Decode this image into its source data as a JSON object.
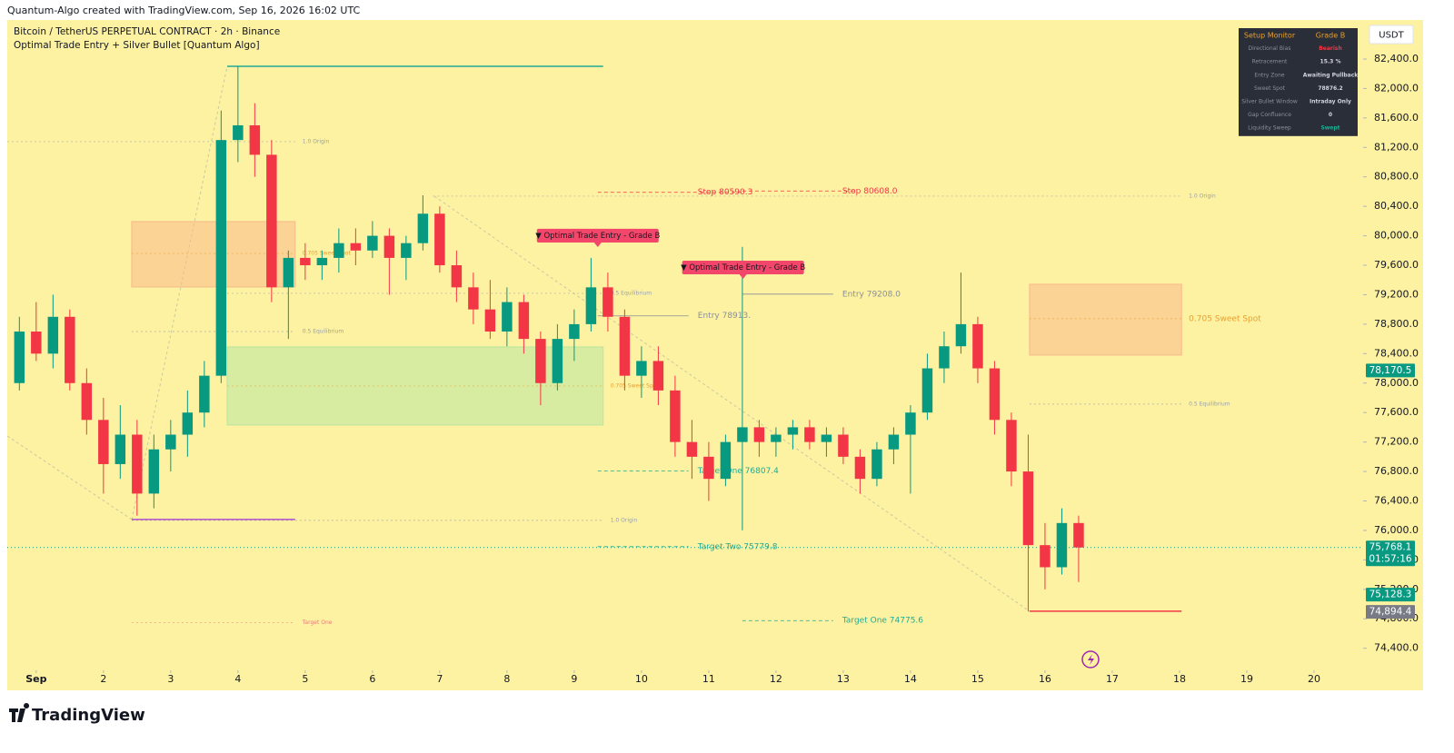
{
  "header": "Quantum-Algo created with TradingView.com, Sep 16, 2026 16:02 UTC",
  "brand": "TradingView",
  "chart_data": {
    "type": "candlestick",
    "title": "Bitcoin / TetherUS PERPETUAL CONTRACT · 2h · Binance",
    "subtitle": "Optimal Trade Entry + Silver Bullet [Quantum Algo]",
    "currency": "USDT",
    "up_color": "#089981",
    "down_color": "#f23645",
    "x": [
      0.75,
      1,
      1.25,
      1.5,
      1.75,
      2,
      2.25,
      2.5,
      2.75,
      3,
      3.25,
      3.5,
      3.75,
      4,
      4.25,
      4.5,
      4.75,
      5,
      5.25,
      5.5,
      5.75,
      6,
      6.25,
      6.5,
      6.75,
      7,
      7.25,
      7.5,
      7.75,
      8,
      8.25,
      8.5,
      8.75,
      9,
      9.25,
      9.5,
      9.75,
      10,
      10.25,
      10.5,
      10.75,
      11,
      11.25,
      11.5,
      11.75,
      12,
      12.25,
      12.5,
      12.75,
      13,
      13.25,
      13.5,
      13.75,
      14,
      14.25,
      14.5,
      14.75,
      15,
      15.25,
      15.5,
      15.75,
      16,
      16.25,
      16.5
    ],
    "open": [
      78000,
      78700,
      78400,
      78900,
      78000,
      77500,
      76900,
      77300,
      76500,
      77100,
      77300,
      77600,
      78100,
      81300,
      81500,
      81100,
      79300,
      79700,
      79600,
      79700,
      79900,
      79800,
      80000,
      79700,
      79900,
      80300,
      79600,
      79300,
      79000,
      78700,
      79100,
      78600,
      78000,
      78600,
      78800,
      79300,
      78900,
      78100,
      78300,
      77900,
      77200,
      77000,
      76700,
      77200,
      77400,
      77200,
      77300,
      77400,
      77200,
      77300,
      77000,
      76700,
      77100,
      77300,
      77600,
      78200,
      78500,
      78800,
      78200,
      77500,
      76800,
      75800,
      75500,
      76100
    ],
    "high": [
      78900,
      79100,
      79200,
      79000,
      78200,
      77800,
      77700,
      77500,
      77300,
      77500,
      77900,
      78300,
      81700,
      82300,
      81800,
      81300,
      79800,
      79900,
      79800,
      80100,
      80100,
      80200,
      80100,
      80000,
      80550,
      80400,
      79800,
      79500,
      79400,
      79300,
      79200,
      78700,
      78800,
      79000,
      79700,
      79500,
      79000,
      78500,
      78500,
      78100,
      77500,
      77200,
      77300,
      79850,
      77500,
      77400,
      77500,
      77500,
      77400,
      77400,
      77100,
      77200,
      77400,
      77700,
      78400,
      78700,
      79500,
      78900,
      78300,
      77600,
      77300,
      76100,
      76300,
      76200
    ],
    "low": [
      77900,
      78300,
      78200,
      77900,
      77300,
      76500,
      76700,
      76200,
      76300,
      76800,
      77000,
      77400,
      78000,
      81000,
      80800,
      79100,
      78600,
      79400,
      79400,
      79500,
      79600,
      79700,
      79200,
      79400,
      79800,
      79500,
      79100,
      78800,
      78600,
      78500,
      78400,
      77700,
      77900,
      78300,
      78700,
      78700,
      77900,
      77800,
      77700,
      77000,
      76700,
      76400,
      76600,
      76000,
      77000,
      77000,
      77100,
      77100,
      77000,
      76900,
      76500,
      76600,
      76900,
      76500,
      77500,
      78000,
      78400,
      78000,
      77300,
      76600,
      74900,
      75200,
      75400,
      75300
    ],
    "close": [
      78700,
      78400,
      78900,
      78000,
      77500,
      76900,
      77300,
      76500,
      77100,
      77300,
      77600,
      78100,
      81300,
      81500,
      81100,
      79300,
      79700,
      79600,
      79700,
      79900,
      79800,
      80000,
      79700,
      79900,
      80300,
      79600,
      79300,
      79000,
      78700,
      79100,
      78600,
      78000,
      78600,
      78800,
      79300,
      78900,
      78100,
      78300,
      77900,
      77200,
      77000,
      76700,
      77200,
      77400,
      77200,
      77300,
      77400,
      77200,
      77300,
      77000,
      76700,
      77100,
      77300,
      77600,
      78200,
      78500,
      78800,
      78200,
      77500,
      76800,
      75800,
      75500,
      76100,
      75768.1
    ],
    "xlim": [
      0.57,
      20.73
    ],
    "xticks": [
      {
        "value": 1,
        "label": "Sep"
      },
      2,
      3,
      4,
      5,
      6,
      7,
      8,
      9,
      10,
      11,
      12,
      13,
      14,
      15,
      16,
      17,
      18,
      19,
      20
    ],
    "ylim": [
      74100,
      82930
    ],
    "yticks": [
      {
        "value": 74400,
        "label": "74,400.0"
      },
      {
        "value": 74800,
        "label": "74,800.0"
      },
      {
        "value": 75200,
        "label": "75,200.0"
      },
      {
        "value": 75600,
        "label": "75,600.0"
      },
      {
        "value": 76000,
        "label": "76,000.0"
      },
      {
        "value": 76400,
        "label": "76,400.0"
      },
      {
        "value": 76800,
        "label": "76,800.0"
      },
      {
        "value": 77200,
        "label": "77,200.0"
      },
      {
        "value": 77600,
        "label": "77,600.0"
      },
      {
        "value": 78000,
        "label": "78,000.0"
      },
      {
        "value": 78400,
        "label": "78,400.0"
      },
      {
        "value": 78800,
        "label": "78,800.0"
      },
      {
        "value": 79200,
        "label": "79,200.0"
      },
      {
        "value": 79600,
        "label": "79,600.0"
      },
      {
        "value": 80000,
        "label": "80,000.0"
      },
      {
        "value": 80400,
        "label": "80,400.0"
      },
      {
        "value": 80800,
        "label": "80,800.0"
      },
      {
        "value": 81200,
        "label": "81,200.0"
      },
      {
        "value": 81600,
        "label": "81,600.0"
      },
      {
        "value": 82000,
        "label": "82,000.0"
      },
      {
        "value": 82400,
        "label": "82,400.0"
      }
    ],
    "zones": [
      {
        "x0": 2.42,
        "x1": 4.85,
        "top": 80193,
        "bottom": 79305,
        "color": "#f7b98a"
      },
      {
        "x0": 3.84,
        "x1": 9.43,
        "top": 78491,
        "bottom": 77431,
        "color": "#b8e6a0"
      },
      {
        "x0": 15.77,
        "x1": 18.03,
        "top": 79342,
        "bottom": 78380,
        "color": "#f7b98a"
      }
    ],
    "lines": [
      {
        "x0": 3.84,
        "x1": 9.43,
        "price": 82301,
        "color": "#22ab94"
      },
      {
        "x0": 2.42,
        "x1": 4.85,
        "price": 76149,
        "color": "#b04fd0"
      },
      {
        "x0": 15.77,
        "x1": 18.03,
        "price": 74903,
        "color": "#f23645"
      }
    ],
    "fib_levels": [
      {
        "text": "1.0 Origin",
        "price": 81278,
        "x0": 0.57,
        "x1": 4.85,
        "color": "#9aa0a8"
      },
      {
        "text": "0.705 Sweet Spot",
        "price": 79760,
        "x0": 2.42,
        "x1": 4.85,
        "color": "#e8a030"
      },
      {
        "text": "0.5 Equilibrium",
        "price": 78700,
        "x0": 2.42,
        "x1": 4.85,
        "color": "#9aa0a8"
      },
      {
        "text": "Target One",
        "price": 74750,
        "x0": 2.42,
        "x1": 4.85,
        "color": "#e87a7a"
      },
      {
        "text": "0.5 Equilibrium",
        "price": 79219,
        "x0": 3.84,
        "x1": 9.43,
        "color": "#9aa0a8"
      },
      {
        "text": "0.705 Sweet Spot",
        "price": 77961,
        "x0": 3.84,
        "x1": 9.43,
        "color": "#e8a030"
      },
      {
        "text": "1.0 Origin",
        "price": 76136,
        "x0": 2.42,
        "x1": 9.43,
        "color": "#9aa0a8"
      },
      {
        "text": "1.0 Origin",
        "price": 80538,
        "x0": 6.9,
        "x1": 18.03,
        "color": "#9aa0a8"
      },
      {
        "text": "0.705 Sweet Spot",
        "price": 78874,
        "x0": 15.77,
        "x1": 18.03,
        "color": "#e8a030"
      },
      {
        "text": "0.5 Equilibrium",
        "price": 77715,
        "x0": 15.77,
        "x1": 18.03,
        "color": "#9aa0a8"
      }
    ],
    "levels": [
      {
        "text": "Stop  80590.3",
        "price": 80590.3,
        "x0": 9.35,
        "x1": 11.5,
        "color": "#f23645"
      },
      {
        "text": "Stop  80608.0",
        "price": 80608,
        "x0": 11.5,
        "x1": 13.2,
        "color": "#f23645"
      },
      {
        "text": "Entry  78913.",
        "price": 78913,
        "x0": 9.35,
        "x1": 10.7,
        "color": "#8a8f99"
      },
      {
        "text": "Entry  79208.0",
        "price": 79208,
        "x0": 11.5,
        "x1": 12.85,
        "color": "#8a8f99"
      },
      {
        "text": "Target One  76807.4",
        "price": 76807.4,
        "x0": 9.35,
        "x1": 10.7,
        "color": "#22ab94"
      },
      {
        "text": "Target Two  75779.8",
        "price": 75779.8,
        "x0": 9.35,
        "x1": 10.7,
        "color": "#22ab94"
      },
      {
        "text": "Target One  74775.6",
        "price": 74775.6,
        "x0": 11.5,
        "x1": 12.85,
        "color": "#22ab94"
      }
    ],
    "signals": [
      {
        "text": "▼ Optimal Trade Entry - Grade B",
        "x": 9.35,
        "price": 79897
      },
      {
        "text": "▼ Optimal Trade Entry - Grade B",
        "x": 11.51,
        "price": 79465
      }
    ],
    "price_labels": [
      {
        "value": 78170.5,
        "label": "78,170.5",
        "color": "#089981"
      },
      {
        "value": 75768.1,
        "label": "75,768.1",
        "sublabel": "01:57:16",
        "color": "#089981"
      },
      {
        "value": 75128.3,
        "label": "75,128.3",
        "color": "#089981"
      },
      {
        "value": 74894.4,
        "label": "74,894.4",
        "color": "#787b86"
      }
    ]
  },
  "setup_monitor": {
    "header": [
      "Setup Monitor",
      "Grade B"
    ],
    "rows": [
      [
        "Directional Bias",
        "Bearish"
      ],
      [
        "Retracement",
        "15.3 %"
      ],
      [
        "Entry Zone",
        "Awaiting Pullback"
      ],
      [
        "Sweet Spot",
        "78876.2"
      ],
      [
        "Silver Bullet Window",
        "Intraday Only"
      ],
      [
        "Gap Confluence",
        "0"
      ],
      [
        "Liquidity Sweep",
        "Swept"
      ]
    ]
  }
}
